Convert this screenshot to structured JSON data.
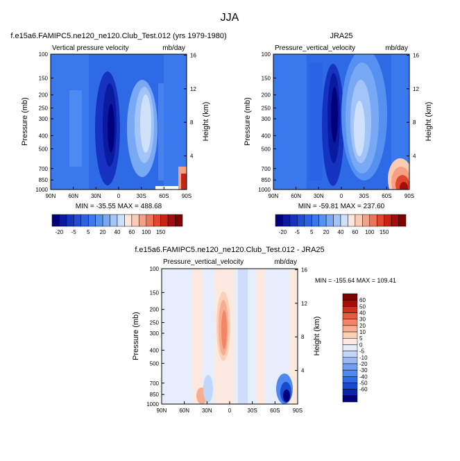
{
  "main_title": "JJA",
  "colors": {
    "sequential": [
      "#00007f",
      "#0a1aa0",
      "#1533c0",
      "#1f4ed8",
      "#2b63e6",
      "#3a78ee",
      "#5691f2",
      "#79a9f5",
      "#a3c4f8",
      "#cfe0fb",
      "#fde6db",
      "#fbcbb3",
      "#f6a185",
      "#ee7557",
      "#e1472e",
      "#c72416",
      "#a30e0a",
      "#7f0000"
    ],
    "diverging": [
      "#00007f",
      "#0a26a6",
      "#1a4ad0",
      "#2f6ae6",
      "#4f88ee",
      "#739ff2",
      "#99baf6",
      "#c2d6fa",
      "#e6eefd",
      "#fde9df",
      "#fbd0b7",
      "#f8ad90",
      "#f28566",
      "#e85c3e",
      "#d2301e",
      "#a50f0a",
      "#7f0000"
    ]
  },
  "chart_data": [
    {
      "type": "heatmap",
      "title": "f.e15a6.FAMIPC5.ne120_ne120.Club_Test.012 (yrs 1979-1980)",
      "left_label": "Vertical pressure velocity",
      "right_label": "mb/day",
      "xlabel": "",
      "ylabel": "Pressure (mb)",
      "ylabel_right": "Height (km)",
      "x_ticks": [
        "90N",
        "60N",
        "30N",
        "0",
        "30S",
        "60S",
        "90S"
      ],
      "y_ticks": [
        "100",
        "150",
        "200",
        "250",
        "300",
        "400",
        "500",
        "700",
        "850",
        "1000"
      ],
      "y_right_ticks": [
        "16",
        "12",
        "8",
        "4"
      ],
      "min_max": "MIN = -35.55  MAX = 488.68",
      "colorbar_levels": [
        "-20",
        "-5",
        "5",
        "20",
        "40",
        "60",
        "100",
        "150"
      ]
    },
    {
      "type": "heatmap",
      "title": "JRA25",
      "left_label": "Pressure_vertical_velocity",
      "right_label": "mb/day",
      "xlabel": "",
      "ylabel": "Pressure (mb)",
      "ylabel_right": "Height (km)",
      "x_ticks": [
        "90N",
        "60N",
        "30N",
        "0",
        "30S",
        "60S",
        "90S"
      ],
      "y_ticks": [
        "100",
        "150",
        "200",
        "250",
        "300",
        "400",
        "500",
        "700",
        "850",
        "1000"
      ],
      "y_right_ticks": [
        "16",
        "12",
        "8",
        "4"
      ],
      "min_max": "MIN = -59.81  MAX = 237.60",
      "colorbar_levels": [
        "-20",
        "-5",
        "5",
        "20",
        "40",
        "60",
        "100",
        "150"
      ]
    },
    {
      "type": "heatmap",
      "title": "f.e15a6.FAMIPC5.ne120_ne120.Club_Test.012 - JRA25",
      "left_label": "Pressure_vertical_velocity",
      "right_label": "mb/day",
      "xlabel": "",
      "ylabel": "Pressure (mb)",
      "ylabel_right": "Height (km)",
      "x_ticks": [
        "90N",
        "60N",
        "30N",
        "0",
        "30S",
        "60S",
        "90S"
      ],
      "y_ticks": [
        "100",
        "150",
        "200",
        "250",
        "300",
        "400",
        "500",
        "700",
        "850",
        "1000"
      ],
      "y_right_ticks": [
        "16",
        "12",
        "8",
        "4"
      ],
      "min_max": "MIN = -155.64  MAX = 109.41",
      "colorbar_levels": [
        "60",
        "50",
        "40",
        "30",
        "20",
        "10",
        "5",
        "0",
        "-5",
        "-10",
        "-20",
        "-30",
        "-40",
        "-50",
        "-60"
      ]
    }
  ]
}
